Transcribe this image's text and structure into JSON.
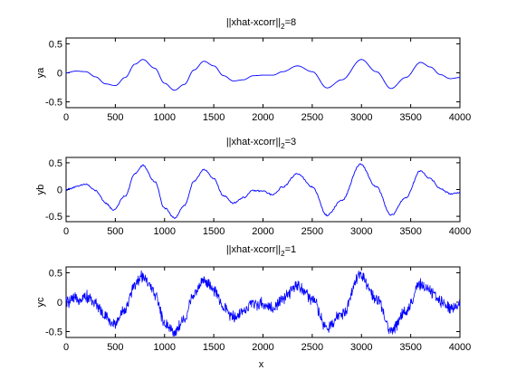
{
  "chart_data": [
    {
      "type": "line",
      "title_main": "||xhat-xcorr||",
      "title_sub": "2",
      "title_value": "=8",
      "xlabel": "",
      "ylabel": "ya",
      "xlim": [
        0,
        4000
      ],
      "ylim": [
        -0.6,
        0.6
      ],
      "xticks": [
        0,
        500,
        1000,
        1500,
        2000,
        2500,
        3000,
        3500,
        4000
      ],
      "xtick_labels": [
        "0",
        "500",
        "1000",
        "1500",
        "2000",
        "2500",
        "3000",
        "3500",
        "4000"
      ],
      "yticks": [
        -0.5,
        0,
        0.5
      ],
      "ytick_labels": [
        "-0.5",
        "0",
        "0.5"
      ],
      "grid": false,
      "color": "#0000ff",
      "noise": "none",
      "series": [
        {
          "x": [
            0,
            100,
            200,
            300,
            400,
            500,
            600,
            700,
            780,
            900,
            1000,
            1100,
            1200,
            1300,
            1400,
            1500,
            1600,
            1700,
            1800,
            1900,
            2000,
            2100,
            2200,
            2350,
            2500,
            2650,
            2800,
            3000,
            3150,
            3300,
            3450,
            3600,
            3700,
            3800,
            3900,
            4000
          ],
          "y": [
            0.0,
            0.03,
            0.02,
            -0.07,
            -0.19,
            -0.22,
            -0.08,
            0.15,
            0.23,
            0.08,
            -0.18,
            -0.3,
            -0.2,
            0.05,
            0.2,
            0.12,
            -0.05,
            -0.14,
            -0.12,
            -0.05,
            -0.04,
            -0.04,
            0.02,
            0.12,
            0.02,
            -0.26,
            -0.12,
            0.23,
            0.02,
            -0.27,
            -0.08,
            0.18,
            0.1,
            -0.03,
            -0.1,
            -0.08
          ]
        }
      ]
    },
    {
      "type": "line",
      "title_main": "||xhat-xcorr||",
      "title_sub": "2",
      "title_value": "=3",
      "xlabel": "",
      "ylabel": "yb",
      "xlim": [
        0,
        4000
      ],
      "ylim": [
        -0.6,
        0.6
      ],
      "xticks": [
        0,
        500,
        1000,
        1500,
        2000,
        2500,
        3000,
        3500,
        4000
      ],
      "xtick_labels": [
        "0",
        "500",
        "1000",
        "1500",
        "2000",
        "2500",
        "3000",
        "3500",
        "4000"
      ],
      "yticks": [
        -0.5,
        0,
        0.5
      ],
      "ytick_labels": [
        "-0.5",
        "0",
        "0.5"
      ],
      "grid": false,
      "color": "#0000ff",
      "noise": "low",
      "series": [
        {
          "x": [
            0,
            100,
            200,
            300,
            400,
            480,
            600,
            700,
            780,
            900,
            1000,
            1100,
            1200,
            1300,
            1400,
            1500,
            1600,
            1700,
            1800,
            1900,
            2000,
            2100,
            2200,
            2350,
            2500,
            2650,
            2800,
            2990,
            3150,
            3300,
            3450,
            3600,
            3700,
            3800,
            3900,
            4000
          ],
          "y": [
            0.0,
            0.05,
            0.1,
            -0.02,
            -0.25,
            -0.38,
            -0.12,
            0.3,
            0.45,
            0.15,
            -0.35,
            -0.53,
            -0.3,
            0.15,
            0.38,
            0.2,
            -0.12,
            -0.25,
            -0.15,
            -0.02,
            -0.03,
            -0.1,
            0.05,
            0.3,
            0.05,
            -0.48,
            -0.2,
            0.47,
            0.05,
            -0.48,
            -0.15,
            0.35,
            0.2,
            0.02,
            -0.08,
            -0.05
          ]
        }
      ]
    },
    {
      "type": "line",
      "title_main": "||xhat-xcorr||",
      "title_sub": "2",
      "title_value": "=1",
      "xlabel": "x",
      "ylabel": "yc",
      "xlim": [
        0,
        4000
      ],
      "ylim": [
        -0.6,
        0.6
      ],
      "xticks": [
        0,
        500,
        1000,
        1500,
        2000,
        2500,
        3000,
        3500,
        4000
      ],
      "xtick_labels": [
        "0",
        "500",
        "1000",
        "1500",
        "2000",
        "2500",
        "3000",
        "3500",
        "4000"
      ],
      "yticks": [
        -0.5,
        0,
        0.5
      ],
      "ytick_labels": [
        "-0.5",
        "0",
        "0.5"
      ],
      "grid": false,
      "color": "#0000ff",
      "noise": "high",
      "series": [
        {
          "x": [
            0,
            100,
            200,
            300,
            400,
            480,
            600,
            700,
            780,
            900,
            1000,
            1100,
            1200,
            1300,
            1400,
            1500,
            1600,
            1700,
            1800,
            1900,
            2000,
            2100,
            2200,
            2350,
            2500,
            2650,
            2800,
            2990,
            3150,
            3300,
            3450,
            3600,
            3700,
            3800,
            3900,
            4000
          ],
          "y": [
            0.0,
            0.05,
            0.1,
            -0.02,
            -0.25,
            -0.38,
            -0.12,
            0.3,
            0.45,
            0.15,
            -0.35,
            -0.5,
            -0.3,
            0.15,
            0.38,
            0.2,
            -0.1,
            -0.25,
            -0.15,
            -0.02,
            -0.03,
            -0.1,
            0.05,
            0.28,
            0.05,
            -0.45,
            -0.2,
            0.47,
            0.05,
            -0.48,
            -0.15,
            0.3,
            0.18,
            0.02,
            -0.08,
            -0.05
          ]
        }
      ]
    }
  ]
}
